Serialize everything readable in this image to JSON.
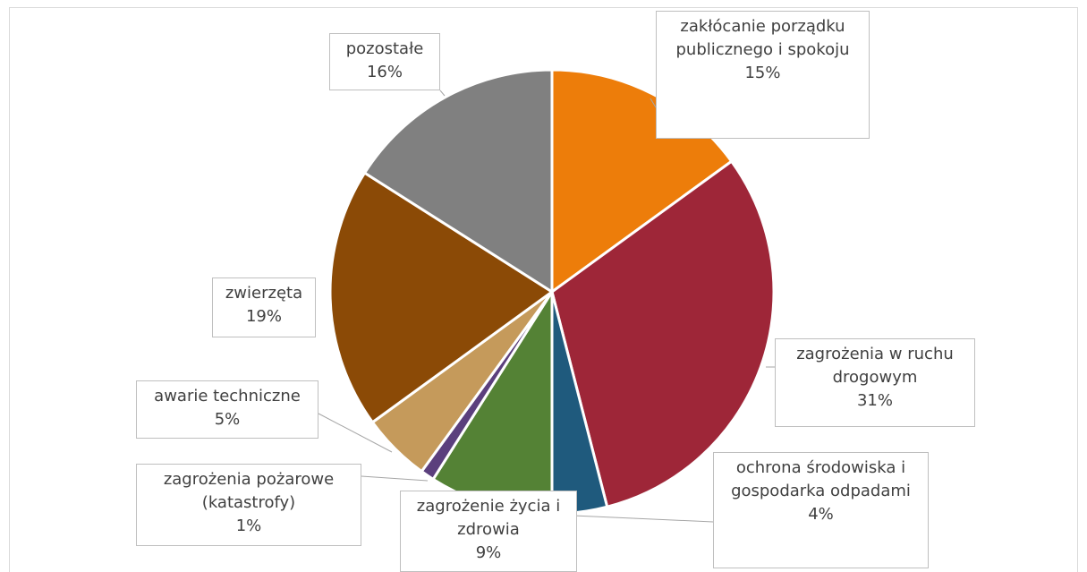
{
  "chart_data": {
    "type": "pie",
    "categories": [
      "zakłócanie porządku publicznego i spokoju",
      "zagrożenia w ruchu drogowym",
      "ochrona środowiska i gospodarka odpadami",
      "zagrożenie życia i zdrowia",
      "zagrożenia pożarowe (katastrofy)",
      "awarie techniczne",
      "zwierzęta",
      "pozostałe"
    ],
    "values": [
      15,
      31,
      4,
      9,
      1,
      5,
      19,
      16
    ],
    "value_labels": [
      "15%",
      "31%",
      "4%",
      "9%",
      "1%",
      "5%",
      "19%",
      "16%"
    ],
    "colors": [
      "#ed7d0a",
      "#9e2638",
      "#1f5a7d",
      "#548235",
      "#5b3f7d",
      "#c59a5b",
      "#8b4a06",
      "#808080"
    ]
  }
}
